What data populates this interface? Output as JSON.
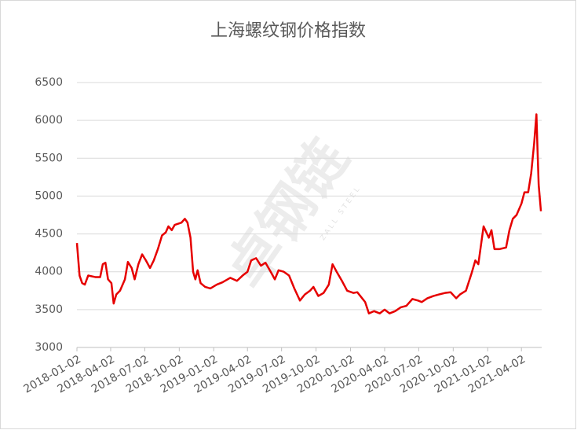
{
  "chart_data": {
    "type": "line",
    "title": "上海螺纹钢价格指数",
    "watermark": "卓钢链",
    "watermark_sub": "ZALL STEEL",
    "x": [
      "2018-01-02",
      "2018-01-09",
      "2018-01-16",
      "2018-01-23",
      "2018-02-01",
      "2018-02-20",
      "2018-03-05",
      "2018-03-12",
      "2018-03-19",
      "2018-03-26",
      "2018-04-04",
      "2018-04-10",
      "2018-04-17",
      "2018-04-27",
      "2018-05-10",
      "2018-05-18",
      "2018-05-28",
      "2018-06-05",
      "2018-06-15",
      "2018-06-25",
      "2018-07-05",
      "2018-07-16",
      "2018-07-26",
      "2018-08-06",
      "2018-08-17",
      "2018-08-27",
      "2018-09-03",
      "2018-09-12",
      "2018-09-20",
      "2018-10-08",
      "2018-10-17",
      "2018-10-24",
      "2018-11-01",
      "2018-11-08",
      "2018-11-14",
      "2018-11-20",
      "2018-11-28",
      "2018-12-10",
      "2018-12-24",
      "2019-01-10",
      "2019-01-25",
      "2019-02-15",
      "2019-03-05",
      "2019-03-20",
      "2019-04-02",
      "2019-04-12",
      "2019-04-25",
      "2019-05-08",
      "2019-05-20",
      "2019-06-03",
      "2019-06-14",
      "2019-06-24",
      "2019-07-08",
      "2019-07-22",
      "2019-08-05",
      "2019-08-20",
      "2019-09-02",
      "2019-09-16",
      "2019-09-25",
      "2019-10-08",
      "2019-10-22",
      "2019-11-05",
      "2019-11-15",
      "2019-11-26",
      "2019-12-10",
      "2019-12-24",
      "2020-01-10",
      "2020-01-20",
      "2020-02-10",
      "2020-02-20",
      "2020-03-05",
      "2020-03-20",
      "2020-04-02",
      "2020-04-15",
      "2020-04-30",
      "2020-05-15",
      "2020-05-30",
      "2020-06-15",
      "2020-06-30",
      "2020-07-10",
      "2020-07-25",
      "2020-08-10",
      "2020-08-25",
      "2020-09-10",
      "2020-09-25",
      "2020-10-10",
      "2020-10-20",
      "2020-11-05",
      "2020-11-20",
      "2020-11-30",
      "2020-12-08",
      "2020-12-15",
      "2020-12-22",
      "2021-01-05",
      "2021-01-12",
      "2021-01-20",
      "2021-02-03",
      "2021-02-20",
      "2021-03-01",
      "2021-03-10",
      "2021-03-20",
      "2021-04-02",
      "2021-04-10",
      "2021-04-20",
      "2021-04-28",
      "2021-05-06",
      "2021-05-12",
      "2021-05-15",
      "2021-05-18",
      "2021-05-24"
    ],
    "series": [
      {
        "name": "上海螺纹钢价格指数",
        "color": "#e60000",
        "values": [
          4380,
          3950,
          3850,
          3830,
          3950,
          3930,
          3930,
          4100,
          4120,
          3900,
          3850,
          3580,
          3700,
          3750,
          3900,
          4130,
          4050,
          3900,
          4100,
          4230,
          4150,
          4050,
          4150,
          4300,
          4480,
          4520,
          4600,
          4550,
          4620,
          4650,
          4700,
          4650,
          4450,
          4000,
          3900,
          4020,
          3850,
          3800,
          3780,
          3830,
          3860,
          3920,
          3880,
          3950,
          4000,
          4150,
          4180,
          4080,
          4120,
          4000,
          3900,
          4020,
          4000,
          3950,
          3780,
          3620,
          3700,
          3750,
          3800,
          3680,
          3720,
          3830,
          4100,
          4000,
          3880,
          3750,
          3720,
          3730,
          3600,
          3450,
          3480,
          3450,
          3500,
          3450,
          3480,
          3530,
          3550,
          3640,
          3620,
          3600,
          3650,
          3680,
          3700,
          3720,
          3730,
          3650,
          3700,
          3750,
          3980,
          4150,
          4100,
          4350,
          4600,
          4450,
          4550,
          4300,
          4300,
          4320,
          4550,
          4700,
          4750,
          4900,
          5050,
          5050,
          5300,
          5700,
          6080,
          5600,
          5150,
          4800
        ]
      }
    ],
    "xlim": [
      "2018-01-02",
      "2021-05-26"
    ],
    "xticks": [
      "2018-01-02",
      "2018-04-02",
      "2018-07-02",
      "2018-10-02",
      "2019-01-02",
      "2019-04-02",
      "2019-07-02",
      "2019-10-02",
      "2020-01-02",
      "2020-04-02",
      "2020-07-02",
      "2020-10-02",
      "2021-01-02",
      "2021-04-02"
    ],
    "ylim": [
      3000,
      6500
    ],
    "yticks": [
      3000,
      3500,
      4000,
      4500,
      5000,
      5500,
      6000,
      6500
    ],
    "grid": true
  }
}
